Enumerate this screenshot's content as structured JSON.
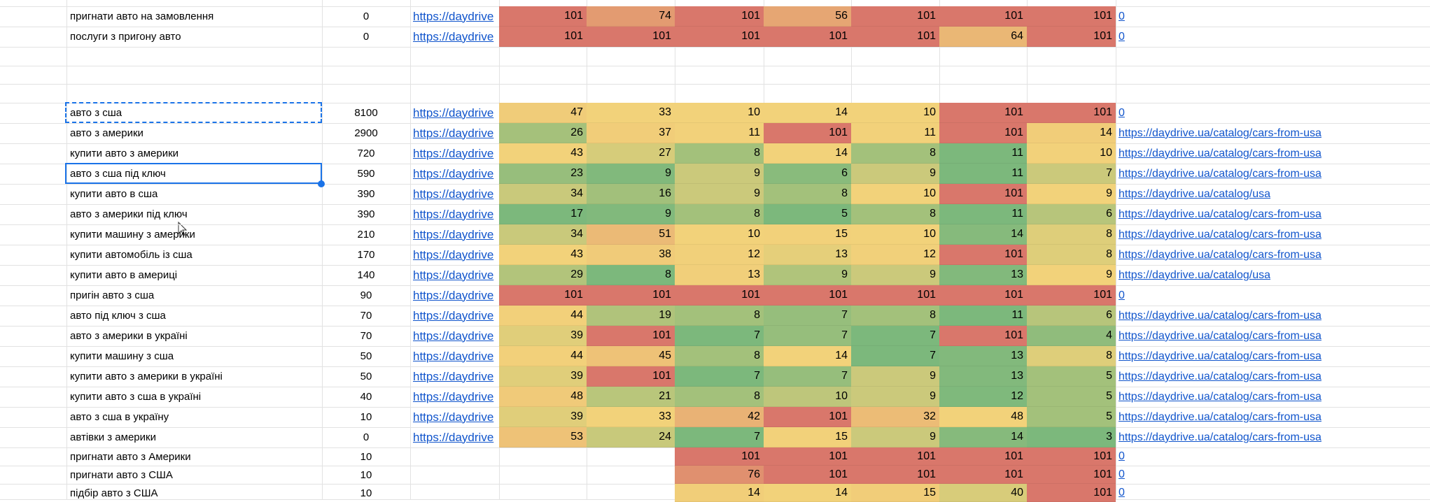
{
  "sheet": {
    "rows": [
      {
        "keyword": "пригнати авто на замовлення",
        "volume": 0,
        "url": "https://daydrive",
        "ranks": [
          101,
          74,
          101,
          56,
          101,
          101,
          101
        ],
        "link": "0"
      },
      {
        "keyword": "послуги з пригону авто",
        "volume": 0,
        "url": "https://daydrive",
        "ranks": [
          101,
          101,
          101,
          101,
          101,
          64,
          101
        ],
        "link": "0"
      },
      {
        "keyword": "авто з сша",
        "volume": 8100,
        "url": "https://daydrive",
        "ranks": [
          47,
          33,
          10,
          14,
          10,
          101,
          101
        ],
        "link": "0"
      },
      {
        "keyword": "авто з америки",
        "volume": 2900,
        "url": "https://daydrive",
        "ranks": [
          26,
          37,
          11,
          101,
          11,
          101,
          14
        ],
        "link": "https://daydrive.ua/catalog/cars-from-usa"
      },
      {
        "keyword": "купити авто з америки",
        "volume": 720,
        "url": "https://daydrive",
        "ranks": [
          43,
          27,
          8,
          14,
          8,
          11,
          10
        ],
        "link": "https://daydrive.ua/catalog/cars-from-usa"
      },
      {
        "keyword": "авто з сша під ключ",
        "volume": 590,
        "url": "https://daydrive",
        "ranks": [
          23,
          9,
          9,
          6,
          9,
          11,
          7
        ],
        "link": "https://daydrive.ua/catalog/cars-from-usa"
      },
      {
        "keyword": "купити авто в сша",
        "volume": 390,
        "url": "https://daydrive",
        "ranks": [
          34,
          16,
          9,
          8,
          10,
          101,
          9
        ],
        "link": "https://daydrive.ua/catalog/usa"
      },
      {
        "keyword": "авто з америки під ключ",
        "volume": 390,
        "url": "https://daydrive",
        "ranks": [
          17,
          9,
          8,
          5,
          8,
          11,
          6
        ],
        "link": "https://daydrive.ua/catalog/cars-from-usa"
      },
      {
        "keyword": "купити машину з америки",
        "volume": 210,
        "url": "https://daydrive",
        "ranks": [
          34,
          51,
          10,
          15,
          10,
          14,
          8
        ],
        "link": "https://daydrive.ua/catalog/cars-from-usa"
      },
      {
        "keyword": "купити автомобіль із сша",
        "volume": 170,
        "url": "https://daydrive",
        "ranks": [
          43,
          38,
          12,
          13,
          12,
          101,
          8
        ],
        "link": "https://daydrive.ua/catalog/cars-from-usa"
      },
      {
        "keyword": "купити авто в америці",
        "volume": 140,
        "url": "https://daydrive",
        "ranks": [
          29,
          8,
          13,
          9,
          9,
          13,
          9
        ],
        "link": "https://daydrive.ua/catalog/usa"
      },
      {
        "keyword": "пригін авто з сша",
        "volume": 90,
        "url": "https://daydrive",
        "ranks": [
          101,
          101,
          101,
          101,
          101,
          101,
          101
        ],
        "link": "0"
      },
      {
        "keyword": "авто під ключ з сша",
        "volume": 70,
        "url": "https://daydrive",
        "ranks": [
          44,
          19,
          8,
          7,
          8,
          11,
          6
        ],
        "link": "https://daydrive.ua/catalog/cars-from-usa"
      },
      {
        "keyword": "авто з америки в україні",
        "volume": 70,
        "url": "https://daydrive",
        "ranks": [
          39,
          101,
          7,
          7,
          7,
          101,
          4
        ],
        "link": "https://daydrive.ua/catalog/cars-from-usa"
      },
      {
        "keyword": "купити машину з сша",
        "volume": 50,
        "url": "https://daydrive",
        "ranks": [
          44,
          45,
          8,
          14,
          7,
          13,
          8
        ],
        "link": "https://daydrive.ua/catalog/cars-from-usa"
      },
      {
        "keyword": "купити авто з америки в україні",
        "volume": 50,
        "url": "https://daydrive",
        "ranks": [
          39,
          101,
          7,
          7,
          9,
          13,
          5
        ],
        "link": "https://daydrive.ua/catalog/cars-from-usa"
      },
      {
        "keyword": "купити авто з сша в україні",
        "volume": 40,
        "url": "https://daydrive",
        "ranks": [
          48,
          21,
          8,
          10,
          9,
          12,
          5
        ],
        "link": "https://daydrive.ua/catalog/cars-from-usa"
      },
      {
        "keyword": "авто з сша в україну",
        "volume": 10,
        "url": "https://daydrive",
        "ranks": [
          39,
          33,
          42,
          101,
          32,
          48,
          5
        ],
        "link": "https://daydrive.ua/catalog/cars-from-usa"
      },
      {
        "keyword": "автівки з америки",
        "volume": 0,
        "url": "https://daydrive",
        "ranks": [
          53,
          24,
          7,
          15,
          9,
          14,
          3
        ],
        "link": "https://daydrive.ua/catalog/cars-from-usa"
      },
      {
        "keyword": "пригнати авто з Америки",
        "volume": 10,
        "ranks": [
          null,
          null,
          101,
          101,
          101,
          101,
          101
        ],
        "link": "0"
      },
      {
        "keyword": "пригнати авто з США",
        "volume": 10,
        "ranks": [
          null,
          null,
          76,
          101,
          101,
          101,
          101
        ],
        "link": "0"
      },
      {
        "keyword": "підбір авто з США",
        "volume": 10,
        "ranks": [
          null,
          null,
          14,
          14,
          15,
          40,
          101
        ],
        "link": "0"
      }
    ]
  }
}
